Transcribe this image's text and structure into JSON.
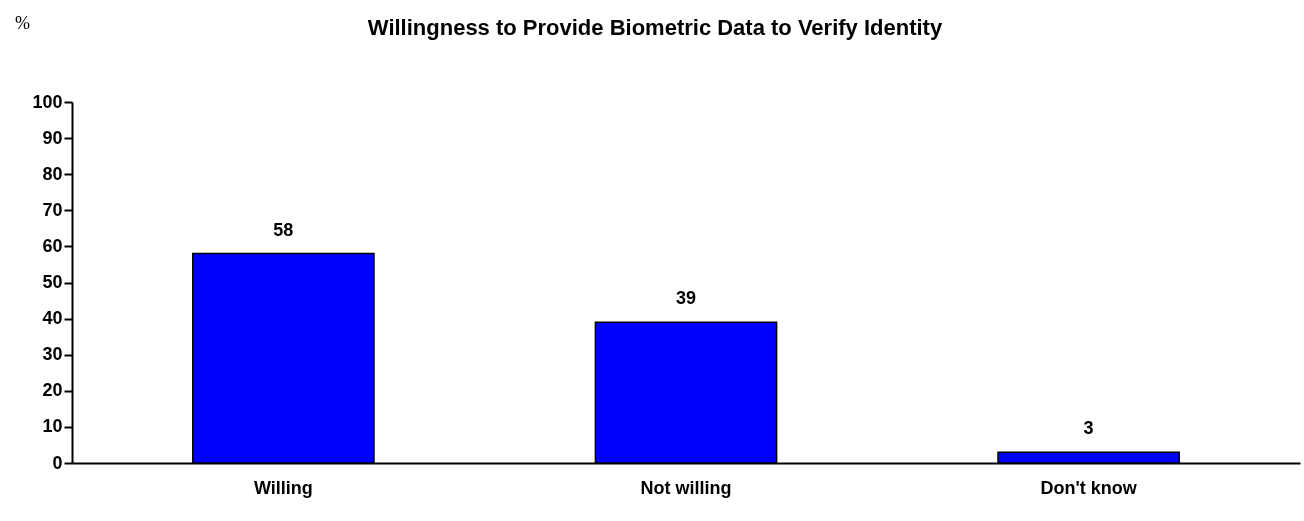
{
  "chart_data": {
    "type": "bar",
    "title": "Willingness to Provide Biometric Data to Verify Identity",
    "ylabel": "%",
    "categories": [
      "Willing",
      "Not willing",
      "Don't know"
    ],
    "values": [
      58,
      39,
      3
    ],
    "color": "#0000ff",
    "ylim": [
      0,
      100
    ],
    "yticks": [
      0,
      10,
      20,
      30,
      40,
      50,
      60,
      70,
      80,
      90,
      100
    ],
    "grid": false,
    "data_labels": true
  }
}
